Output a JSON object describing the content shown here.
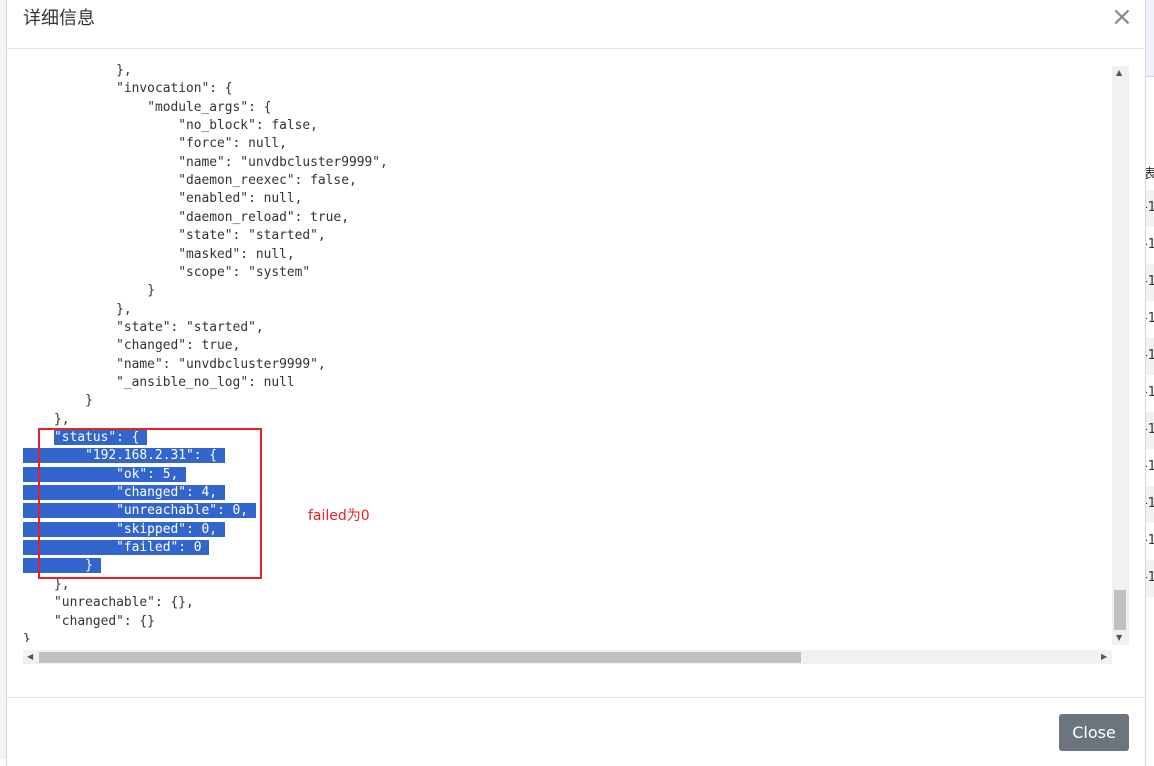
{
  "dialog": {
    "title": "详细信息",
    "close_icon": "×",
    "close_button": "Close"
  },
  "code_lines": [
    {
      "indent": 12,
      "text": "},"
    },
    {
      "indent": 12,
      "text": "\"invocation\": {"
    },
    {
      "indent": 16,
      "text": "\"module_args\": {"
    },
    {
      "indent": 20,
      "text": "\"no_block\": false,"
    },
    {
      "indent": 20,
      "text": "\"force\": null,"
    },
    {
      "indent": 20,
      "text": "\"name\": \"unvdbcluster9999\","
    },
    {
      "indent": 20,
      "text": "\"daemon_reexec\": false,"
    },
    {
      "indent": 20,
      "text": "\"enabled\": null,"
    },
    {
      "indent": 20,
      "text": "\"daemon_reload\": true,"
    },
    {
      "indent": 20,
      "text": "\"state\": \"started\","
    },
    {
      "indent": 20,
      "text": "\"masked\": null,"
    },
    {
      "indent": 20,
      "text": "\"scope\": \"system\""
    },
    {
      "indent": 16,
      "text": "}"
    },
    {
      "indent": 12,
      "text": "},"
    },
    {
      "indent": 12,
      "text": "\"state\": \"started\","
    },
    {
      "indent": 12,
      "text": "\"changed\": true,"
    },
    {
      "indent": 12,
      "text": "\"name\": \"unvdbcluster9999\","
    },
    {
      "indent": 12,
      "text": "\"_ansible_no_log\": null"
    },
    {
      "indent": 8,
      "text": "}"
    },
    {
      "indent": 4,
      "text": "},"
    },
    {
      "indent": 4,
      "text": "\"status\": {",
      "selected": "text"
    },
    {
      "indent": 8,
      "text": "\"192.168.2.31\": {",
      "selected": "full"
    },
    {
      "indent": 12,
      "text": "\"ok\": 5,",
      "selected": "full"
    },
    {
      "indent": 12,
      "text": "\"changed\": 4,",
      "selected": "full"
    },
    {
      "indent": 12,
      "text": "\"unreachable\": 0,",
      "selected": "full"
    },
    {
      "indent": 12,
      "text": "\"skipped\": 0,",
      "selected": "full"
    },
    {
      "indent": 12,
      "text": "\"failed\": 0",
      "selected": "full"
    },
    {
      "indent": 8,
      "text": "}",
      "selected": "full"
    },
    {
      "indent": 4,
      "text": "},"
    },
    {
      "indent": 4,
      "text": "\"unreachable\": {},"
    },
    {
      "indent": 4,
      "text": "\"changed\": {}"
    },
    {
      "indent": 0,
      "text": "}"
    }
  ],
  "annotation": {
    "text": "failed为0",
    "color": "#e8202a"
  },
  "background_page": {
    "header_fragment": "表",
    "row_fragments": [
      "-1",
      "-1",
      "-1",
      "-1",
      "-1",
      "-1",
      "-1",
      "-1",
      "-1",
      "-1",
      "-1"
    ]
  },
  "colors": {
    "selection": "#3366cc",
    "button": "#6c757d"
  }
}
